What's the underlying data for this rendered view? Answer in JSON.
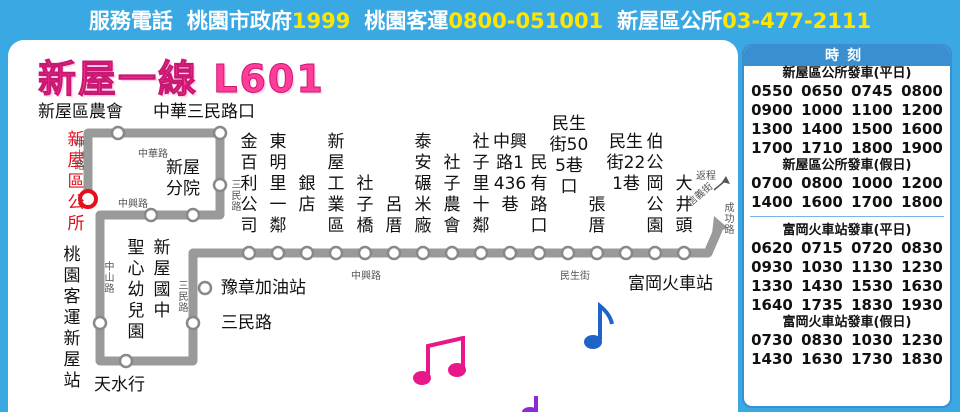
{
  "header": {
    "service_label": "服務電話",
    "contacts": [
      {
        "name": "桃園市政府",
        "number": "1999"
      },
      {
        "name": "桃園客運",
        "number": "0800-051001"
      },
      {
        "name": "新屋區公所",
        "number": "03-477-2111"
      }
    ]
  },
  "route": {
    "title": "新屋一線 L601",
    "start_label": "新屋區公所",
    "stops": [
      {
        "name": "新屋區農會"
      },
      {
        "name": "中華三民路口"
      },
      {
        "name": "新屋分院"
      },
      {
        "name": "新屋國中"
      },
      {
        "name": "聖心幼兒園"
      },
      {
        "name": "桃園客運新屋站"
      },
      {
        "name": "天水行"
      },
      {
        "name": "三民路"
      },
      {
        "name": "豫章加油站"
      },
      {
        "name": "金百利公司"
      },
      {
        "name": "東明里一鄰"
      },
      {
        "name": "銀店"
      },
      {
        "name": "新屋工業區"
      },
      {
        "name": "社子橋"
      },
      {
        "name": "呂厝"
      },
      {
        "name": "泰安碾米廠"
      },
      {
        "name": "社子農會"
      },
      {
        "name": "社子里十鄰"
      },
      {
        "name": "中興路1436巷"
      },
      {
        "name": "民有路口"
      },
      {
        "name": "民生街505巷口"
      },
      {
        "name": "張厝"
      },
      {
        "name": "民生街221巷"
      },
      {
        "name": "伯公岡公園"
      },
      {
        "name": "大井頭"
      },
      {
        "name": "富岡火車站"
      }
    ],
    "roads": [
      "中山路",
      "中華路",
      "中興路",
      "中山路",
      "三民路",
      "三民路",
      "中興路",
      "民生街",
      "信義街",
      "成功路"
    ],
    "return_label": "返程"
  },
  "colors": {
    "accent": "#3aa9e3",
    "title": "#ff3c9a",
    "start": "#e4101e",
    "route_line": "#9a9a9a"
  },
  "schedule": {
    "title": "時刻",
    "sections": [
      {
        "label": "新屋區公所發車(平日)",
        "rows": [
          [
            "0550",
            "0650",
            "0745",
            "0800"
          ],
          [
            "0900",
            "1000",
            "1100",
            "1200"
          ],
          [
            "1300",
            "1400",
            "1500",
            "1600"
          ],
          [
            "1700",
            "1710",
            "1800",
            "1900"
          ]
        ]
      },
      {
        "label": "新屋區公所發車(假日)",
        "rows": [
          [
            "0700",
            "0800",
            "1000",
            "1200"
          ],
          [
            "1400",
            "1600",
            "1700",
            "1800"
          ]
        ]
      },
      {
        "label": "富岡火車站發車(平日)",
        "rows": [
          [
            "0620",
            "0715",
            "0720",
            "0830"
          ],
          [
            "0930",
            "1030",
            "1130",
            "1230"
          ],
          [
            "1330",
            "1430",
            "1530",
            "1630"
          ],
          [
            "1640",
            "1735",
            "1830",
            "1930"
          ]
        ]
      },
      {
        "label": "富岡火車站發車(假日)",
        "rows": [
          [
            "0730",
            "0830",
            "1030",
            "1230"
          ],
          [
            "1430",
            "1630",
            "1730",
            "1830"
          ]
        ]
      }
    ]
  }
}
